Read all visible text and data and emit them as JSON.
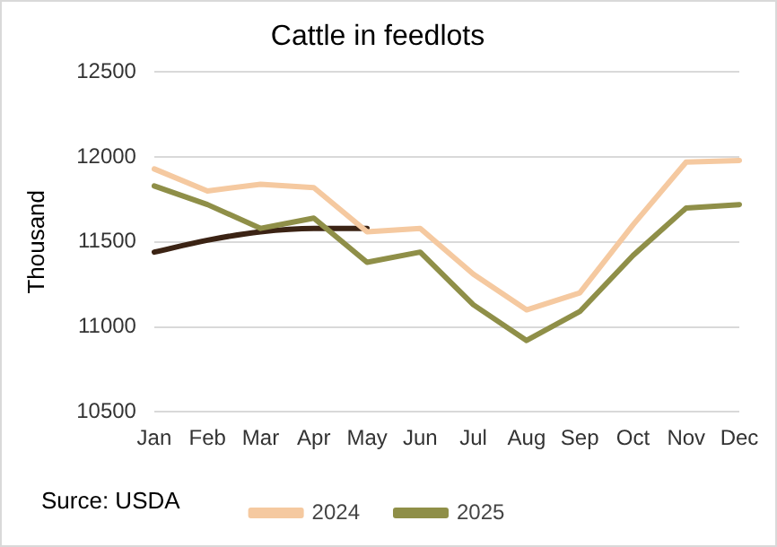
{
  "chart_data": {
    "type": "line",
    "title": "Cattle in feedlots",
    "ylabel": "Thousand",
    "categories": [
      "Jan",
      "Feb",
      "Mar",
      "Apr",
      "May",
      "Jun",
      "Jul",
      "Aug",
      "Sep",
      "Oct",
      "Nov",
      "Dec"
    ],
    "series": [
      {
        "name": "2024",
        "color": "#f5c9a0",
        "values": [
          11930,
          11800,
          11840,
          11820,
          11560,
          11580,
          11310,
          11100,
          11200,
          11600,
          11970,
          11980
        ]
      },
      {
        "name": "2025",
        "color": "#8f8f48",
        "values": [
          11830,
          11720,
          11580,
          11640,
          11380,
          11440,
          11130,
          10920,
          11090,
          11420,
          11700,
          11720
        ]
      },
      {
        "color": "#3b2314",
        "values": [
          11440,
          11510,
          11560,
          11580,
          11580,
          null,
          null,
          null,
          null,
          null,
          null,
          null
        ]
      }
    ],
    "ylim": [
      10500,
      12500
    ],
    "yticks": [
      10500,
      11000,
      11500,
      12000,
      12500
    ],
    "grid": "y",
    "legend": "bottom",
    "marker": "none",
    "line_style": "solid",
    "annotations": [
      "Surce: USDA"
    ]
  }
}
